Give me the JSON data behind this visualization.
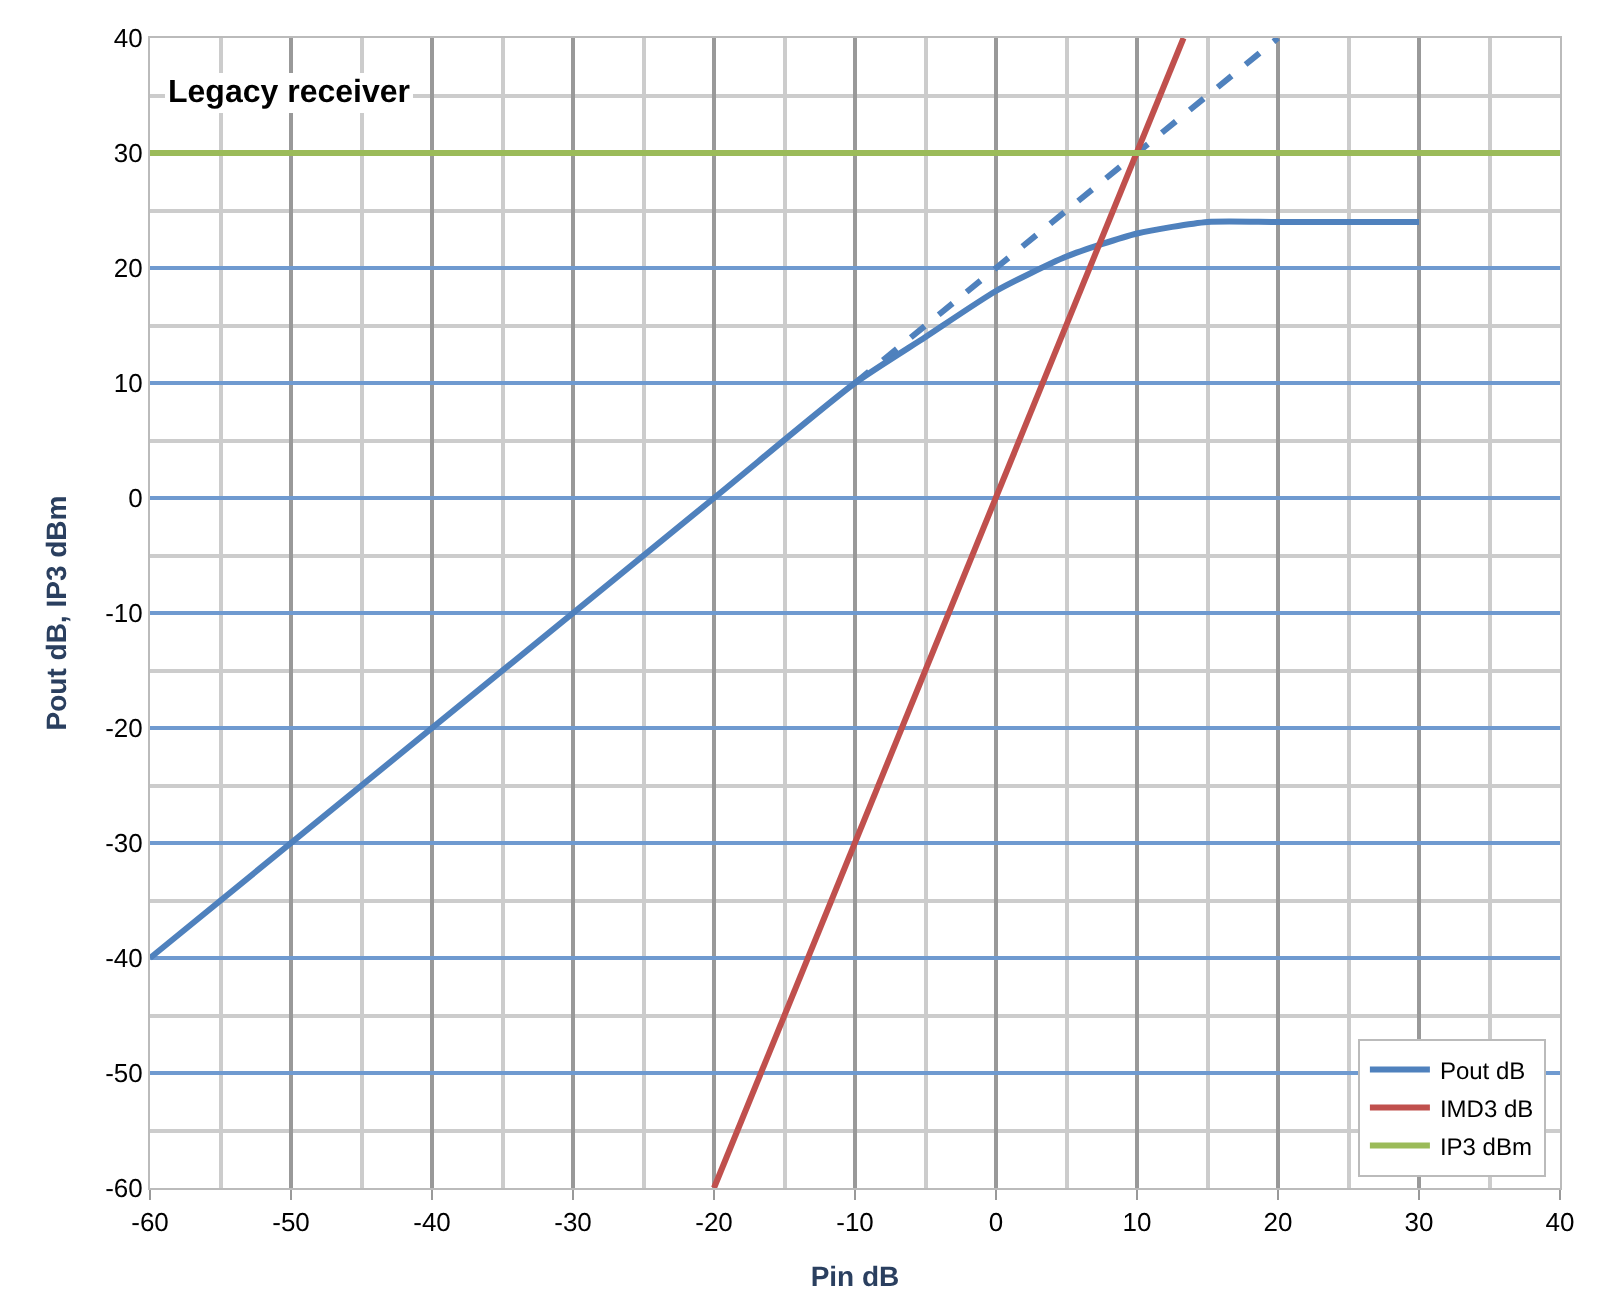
{
  "chart_data": {
    "type": "line",
    "xlabel": "Pin dB",
    "ylabel": "Pout dB, IP3 dBm",
    "annotations": [
      "Legacy receiver"
    ],
    "series": [
      {
        "name": "Pout dB",
        "color": "#4f81bd",
        "x": [
          -60,
          -20,
          -10,
          -5,
          0,
          5,
          10,
          15,
          20,
          30
        ],
        "values": [
          -40,
          0,
          10,
          14,
          18,
          21,
          23,
          24,
          24,
          24
        ]
      },
      {
        "color": "#4f81bd",
        "line_style": "dashed",
        "x": [
          -10,
          20
        ],
        "values": [
          10,
          40
        ]
      },
      {
        "name": "IMD3 dB",
        "color": "#c0504d",
        "x": [
          -20,
          13.3
        ],
        "values": [
          -60,
          40
        ]
      },
      {
        "name": "IP3 dBm",
        "color": "#9bbb59",
        "x": [
          -60,
          40
        ],
        "values": [
          30,
          30
        ]
      }
    ],
    "xlim": [
      -60,
      40
    ],
    "xticks": [
      -60,
      -50,
      -40,
      -30,
      -20,
      -10,
      0,
      10,
      20,
      30,
      40
    ],
    "ylim": [
      -60,
      40
    ],
    "yticks": [
      -60,
      -50,
      -40,
      -30,
      -20,
      -10,
      0,
      10,
      20,
      30,
      40
    ],
    "grid": true,
    "legend": "bottom right"
  }
}
